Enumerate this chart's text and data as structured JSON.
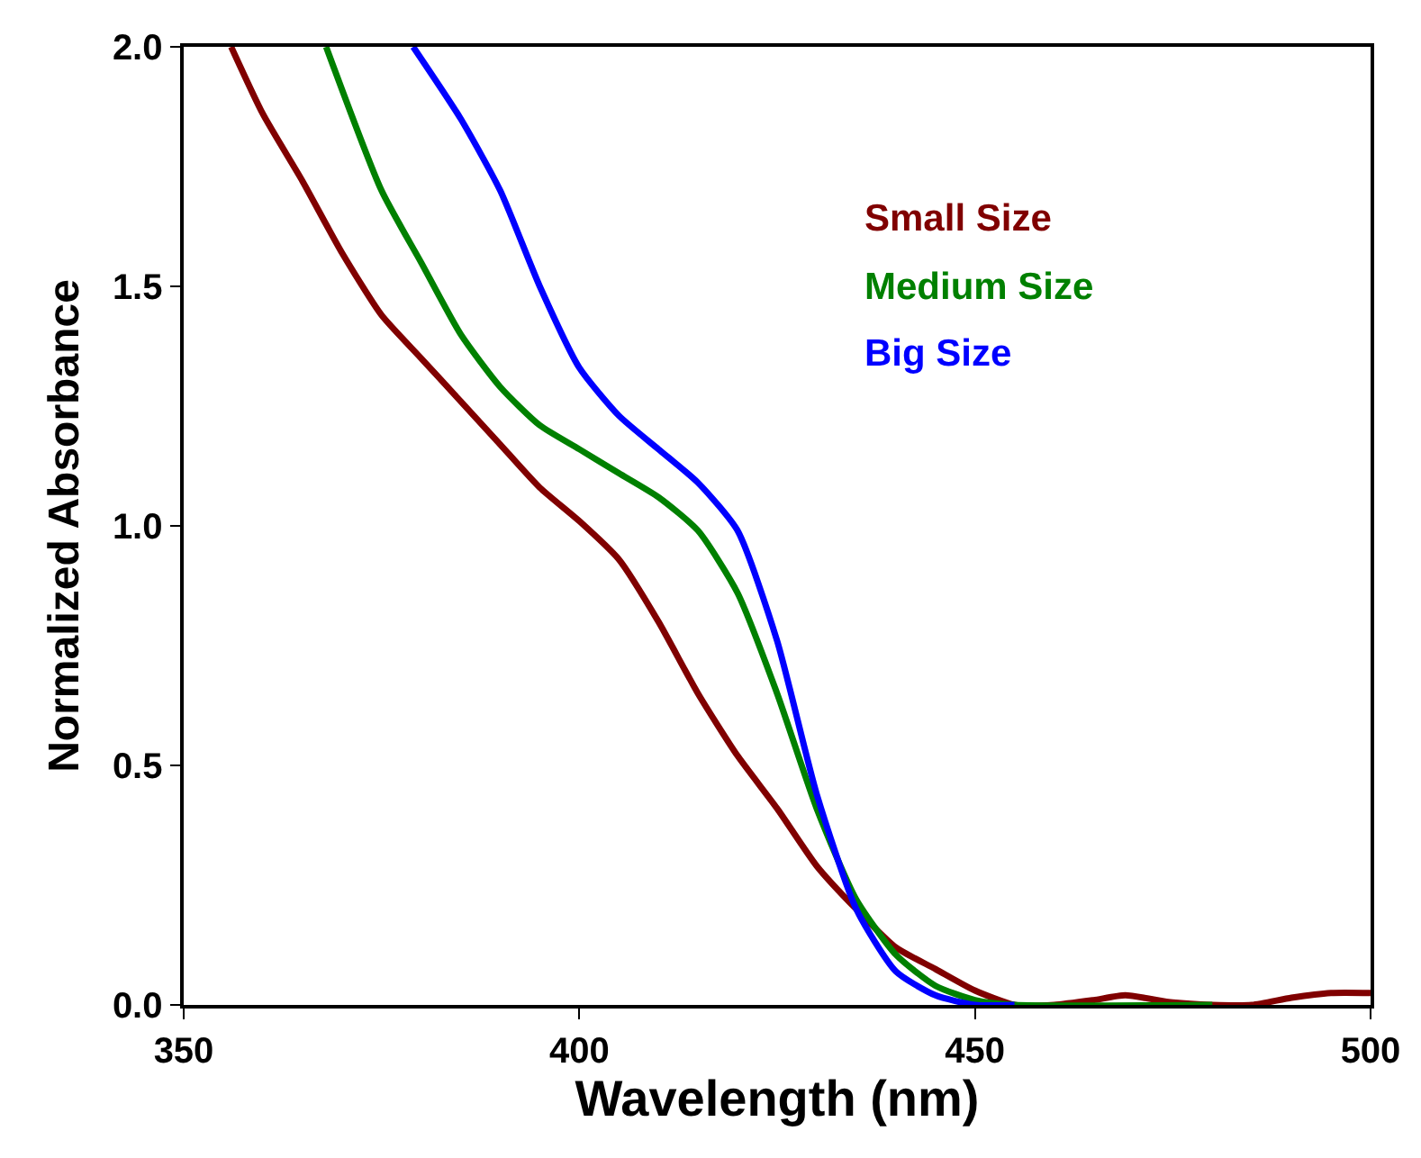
{
  "chart_data": {
    "type": "line",
    "xlabel": "Wavelength (nm)",
    "ylabel": "Normalized Absorbance",
    "xlim": [
      350,
      500
    ],
    "xticks": [
      350,
      400,
      450,
      500
    ],
    "ylim": [
      0,
      2
    ],
    "yticks": [
      {
        "value": 0,
        "label": "0.0"
      },
      {
        "value": 0.5,
        "label": "0.5"
      },
      {
        "value": 1,
        "label": "1.0"
      },
      {
        "value": 1.5,
        "label": "1.5"
      },
      {
        "value": 2,
        "label": "2.0"
      }
    ],
    "grid": false,
    "legend": "top right",
    "line_style": "solid",
    "series": [
      {
        "name": "Small Size",
        "color": "#800000",
        "x": [
          356,
          360,
          365,
          370,
          375,
          380,
          385,
          390,
          395,
          400,
          405,
          410,
          415,
          420,
          425,
          430,
          435,
          440,
          445,
          450,
          455,
          460,
          465,
          469,
          475,
          480,
          485,
          490,
          495,
          500
        ],
        "values": [
          2.0,
          1.86,
          1.72,
          1.57,
          1.44,
          1.35,
          1.26,
          1.17,
          1.08,
          1.01,
          0.93,
          0.8,
          0.65,
          0.52,
          0.41,
          0.29,
          0.2,
          0.12,
          0.075,
          0.03,
          0.0,
          0.0,
          0.01,
          0.02,
          0.005,
          0.0,
          0.0,
          0.015,
          0.025,
          0.025
        ]
      },
      {
        "name": "Medium Size",
        "color": "#008000",
        "x": [
          368,
          375,
          380,
          385,
          390,
          395,
          400,
          405,
          410,
          415,
          420,
          425,
          430,
          435,
          440,
          445,
          450,
          455,
          480
        ],
        "values": [
          2.0,
          1.7,
          1.55,
          1.4,
          1.29,
          1.21,
          1.16,
          1.11,
          1.06,
          0.99,
          0.86,
          0.65,
          0.41,
          0.22,
          0.105,
          0.04,
          0.01,
          0.0,
          0.0
        ]
      },
      {
        "name": "Big Size",
        "color": "#0000ff",
        "x": [
          379,
          385,
          390,
          395,
          400,
          405,
          410,
          415,
          420,
          425,
          430,
          435,
          440,
          445,
          450,
          455
        ],
        "values": [
          2.0,
          1.85,
          1.7,
          1.5,
          1.33,
          1.23,
          1.16,
          1.09,
          0.99,
          0.76,
          0.44,
          0.2,
          0.07,
          0.02,
          0.0,
          0.0
        ]
      }
    ]
  }
}
